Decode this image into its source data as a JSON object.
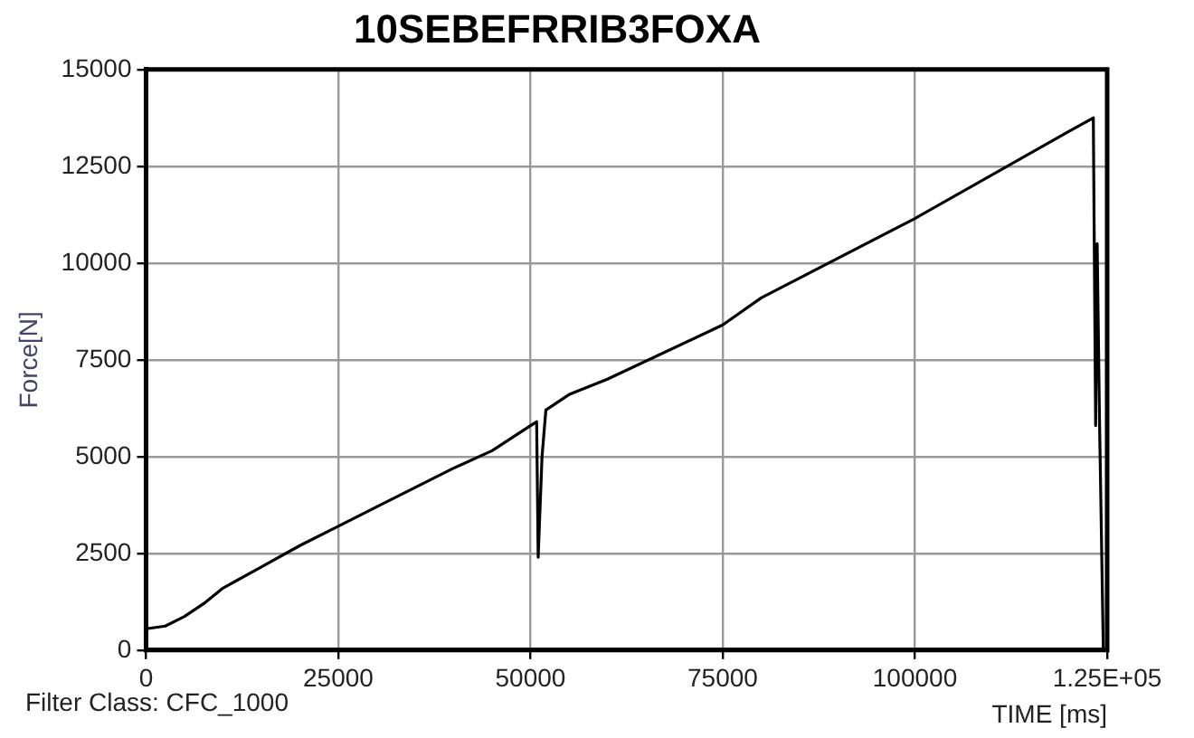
{
  "chart_data": {
    "type": "line",
    "title": "10SEBEFRRIB3FOXA",
    "xlabel": "TIME [ms]",
    "ylabel": "Force[N]",
    "annotations": [
      "Filter Class: CFC_1000"
    ],
    "x": [
      0,
      2500,
      5000,
      7500,
      10000,
      15000,
      20000,
      25000,
      30000,
      40000,
      45000,
      50000,
      50800,
      51000,
      51500,
      52000,
      55000,
      60000,
      75000,
      80000,
      100000,
      120000,
      123200,
      123500,
      123700,
      124000,
      124500
    ],
    "series": [
      {
        "color": "#000000",
        "values": [
          550,
          620,
          870,
          1200,
          1600,
          2150,
          2700,
          3200,
          3700,
          4700,
          5150,
          5800,
          5900,
          2400,
          5000,
          6200,
          6600,
          7000,
          8400,
          9100,
          11150,
          13400,
          13750,
          5800,
          10500,
          6000,
          0
        ]
      }
    ],
    "xlim": [
      0,
      125000
    ],
    "xticks": [
      0,
      25000,
      50000,
      75000,
      100000,
      {
        "value": 125000,
        "label": "1.25E+05"
      }
    ],
    "ylim": [
      0,
      15000
    ],
    "yticks": [
      0,
      2500,
      5000,
      7500,
      10000,
      12500,
      15000
    ],
    "grid": true,
    "legend": false,
    "marker": "none",
    "line_style": "solid"
  }
}
